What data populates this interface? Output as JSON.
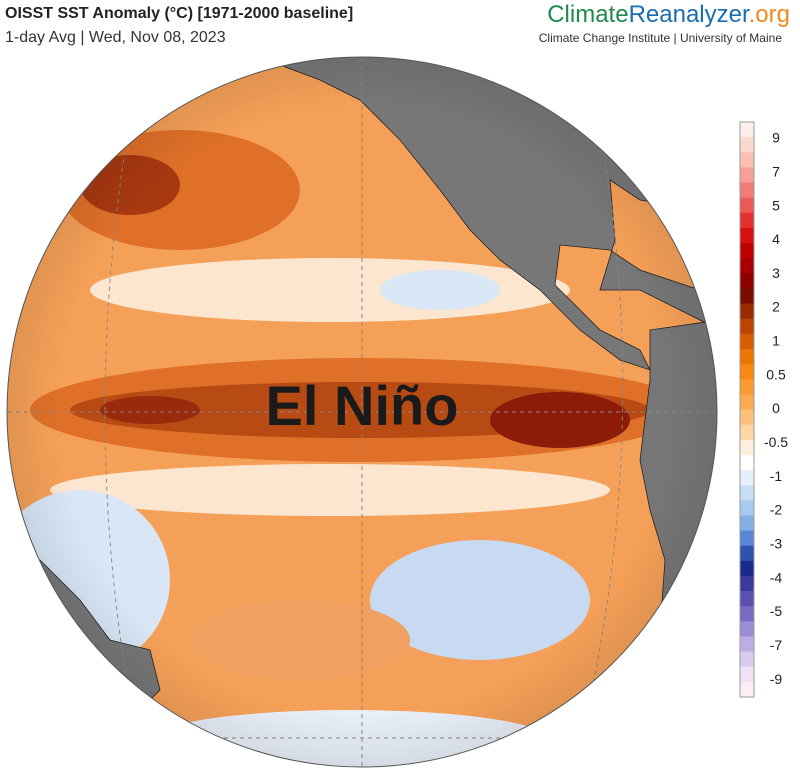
{
  "header": {
    "title": "OISST SST Anomaly (°C) [1971-2000 baseline]",
    "subtitle": "1-day Avg | Wed, Nov 08, 2023",
    "brand": [
      "Climate",
      "Reanalyzer",
      ".org"
    ],
    "affiliation": "Climate Change Institute | University of Maine"
  },
  "map": {
    "annotation": "El Niño"
  },
  "colorbar": {
    "ticks": [
      "9",
      "7",
      "5",
      "4",
      "3",
      "2",
      "1",
      "0.5",
      "0",
      "-0.5",
      "-1",
      "-2",
      "-3",
      "-4",
      "-5",
      "-7",
      "-9"
    ],
    "colors": [
      "#fdeee9",
      "#fbd9cf",
      "#f8bfb2",
      "#f4a096",
      "#ef7c76",
      "#ea5a56",
      "#e43030",
      "#d81010",
      "#c00000",
      "#a80000",
      "#8c0000",
      "#7a0c00",
      "#9a2a00",
      "#bc4400",
      "#d85c00",
      "#ee7400",
      "#f88810",
      "#fa9a30",
      "#fbac50",
      "#fdc07a",
      "#fed6a6",
      "#ffeedd",
      "#ffffff",
      "#e6f0fa",
      "#c8def4",
      "#a8caee",
      "#84b0e6",
      "#5a88d6",
      "#3050b0",
      "#1a2a8a",
      "#3a3a9a",
      "#5a50b0",
      "#7a6ac4",
      "#9c8cd4",
      "#bcaee2",
      "#dacbee",
      "#f0e2f4",
      "#fbeef6"
    ]
  }
}
